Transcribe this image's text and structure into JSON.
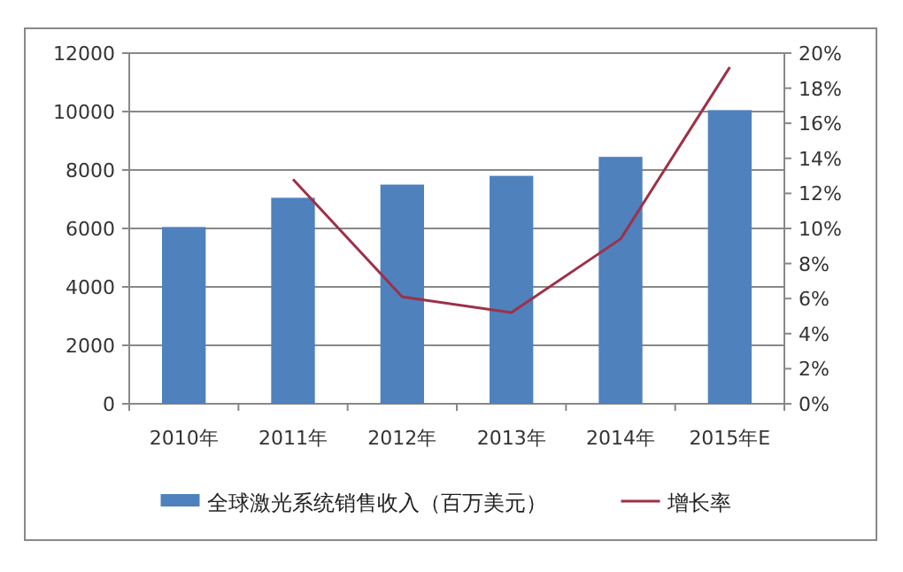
{
  "chart_data": {
    "type": "bar",
    "categories": [
      "2010年",
      "2011年",
      "2012年",
      "2013年",
      "2014年",
      "2015年E"
    ],
    "series": [
      {
        "name": "全球激光系统销售收入（百万美元）",
        "color": "#4f81bd",
        "values": [
          6050,
          7050,
          7500,
          7800,
          8450,
          10050
        ]
      },
      {
        "name": "增长率",
        "type": "line",
        "axis": "y2",
        "color": "#9e3048",
        "values": [
          null,
          12.8,
          6.1,
          5.2,
          9.4,
          19.2
        ]
      }
    ],
    "ylim": [
      0,
      12000
    ],
    "yticks": [
      0,
      2000,
      4000,
      6000,
      8000,
      10000,
      12000
    ],
    "y2lim": [
      0,
      20
    ],
    "y2ticks": [
      {
        "value": 0,
        "label": "0%"
      },
      {
        "value": 2,
        "label": "2%"
      },
      {
        "value": 4,
        "label": "4%"
      },
      {
        "value": 6,
        "label": "6%"
      },
      {
        "value": 8,
        "label": "8%"
      },
      {
        "value": 10,
        "label": "10%"
      },
      {
        "value": 12,
        "label": "12%"
      },
      {
        "value": 14,
        "label": "14%"
      },
      {
        "value": 16,
        "label": "16%"
      },
      {
        "value": 18,
        "label": "18%"
      },
      {
        "value": 20,
        "label": "20%"
      }
    ],
    "grid": "y",
    "legend": "bottom"
  }
}
